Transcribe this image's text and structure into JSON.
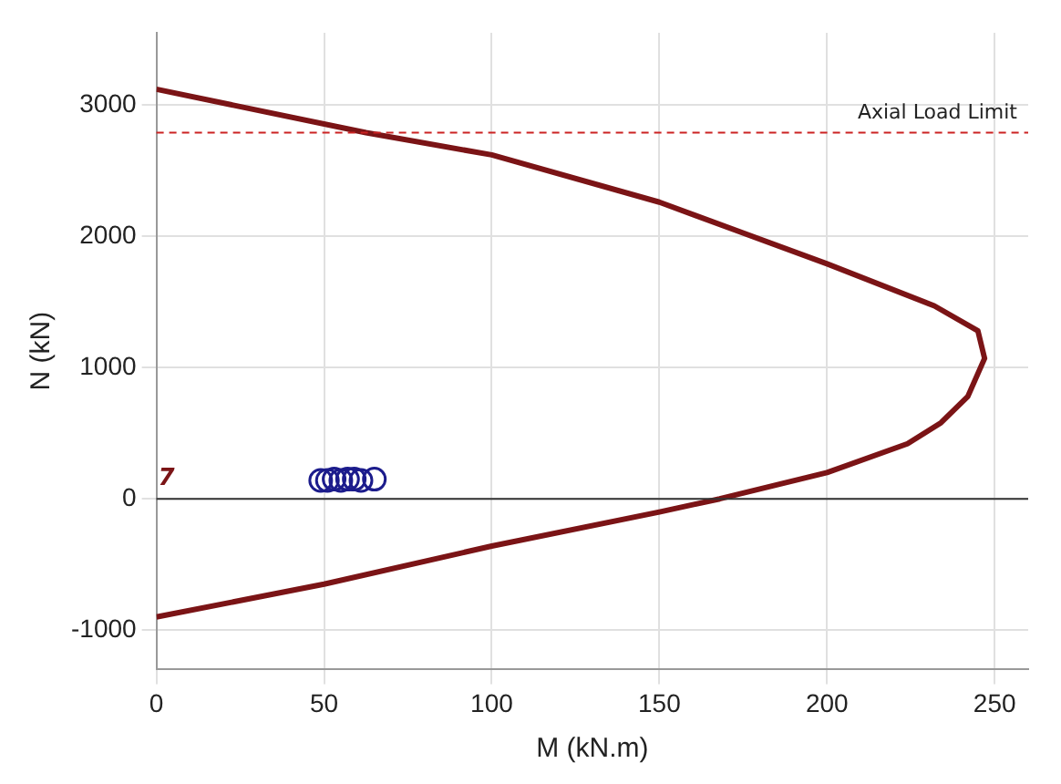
{
  "chart_data": {
    "type": "line",
    "xlabel": "M (kN.m)",
    "ylabel": "N (kN)",
    "xlim": [
      0,
      260
    ],
    "ylim": [
      -1300,
      3550
    ],
    "xticks": [
      0,
      50,
      100,
      150,
      200,
      250
    ],
    "yticks": [
      -1000,
      0,
      1000,
      2000,
      3000
    ],
    "grid": true,
    "legend": false,
    "series": [
      {
        "color": "#7b1416",
        "marker": "none",
        "x": [
          0,
          62.5,
          100,
          150,
          200,
          232,
          245,
          247,
          242,
          234,
          224,
          200,
          168,
          150,
          100,
          50,
          0
        ],
        "values": [
          3120,
          2790,
          2620,
          2260,
          1790,
          1470,
          1280,
          1070,
          780,
          580,
          420,
          200,
          0,
          -100,
          -360,
          -650,
          -900
        ]
      },
      {
        "type": "scatter",
        "color": "#1c1c8c",
        "marker": "circle",
        "x": [
          49,
          51,
          53,
          55,
          57,
          59,
          61,
          65
        ],
        "values": [
          140,
          140,
          150,
          140,
          150,
          150,
          140,
          150
        ]
      }
    ],
    "ref_lines": [
      {
        "axis": "y",
        "value": 2790,
        "label": "Axial Load Limit",
        "color": "#cc2222",
        "line_style": "dashed"
      },
      {
        "axis": "y",
        "value": 0,
        "color": "#333333",
        "line_style": "solid"
      }
    ],
    "annotations": [
      "7"
    ]
  }
}
